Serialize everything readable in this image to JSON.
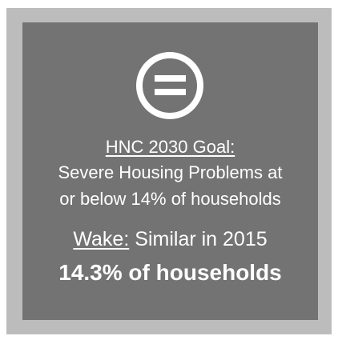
{
  "goal": {
    "label": "HNC 2030 Goal:",
    "lines": [
      "Severe Housing Problems at",
      "or below 14% of households"
    ]
  },
  "status": {
    "label": "Wake:",
    "text": "Similar in 2015",
    "value": "14.3% of households"
  }
}
